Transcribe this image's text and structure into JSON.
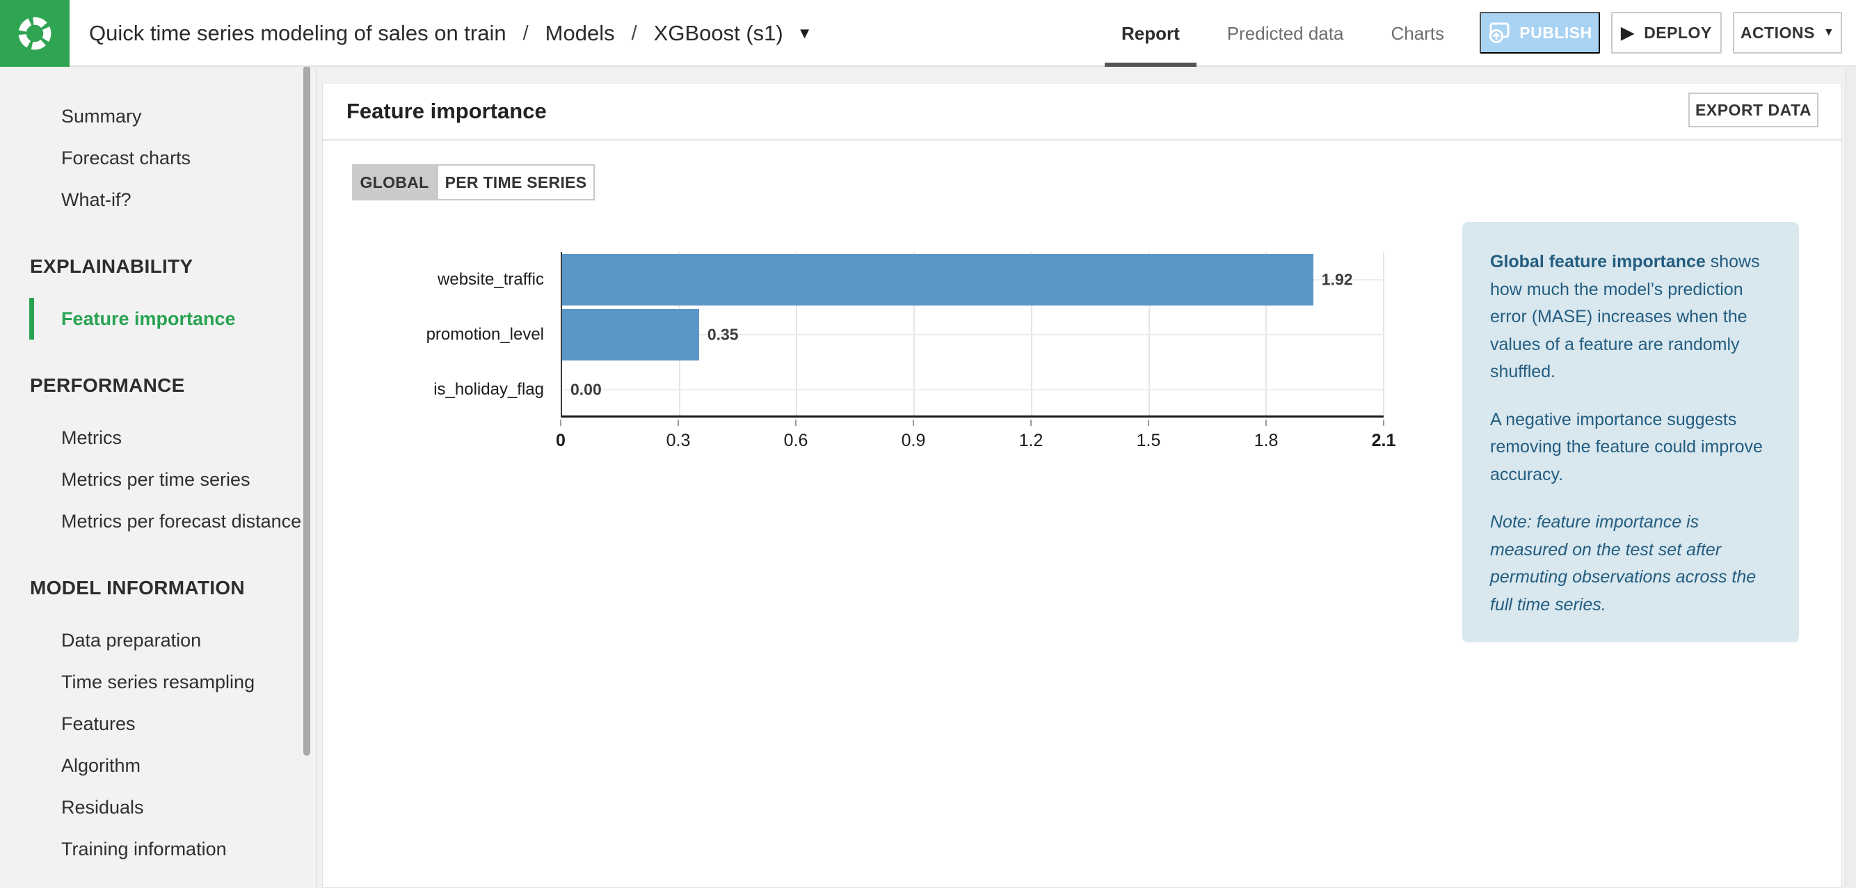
{
  "icons": {
    "caret_down": "▼",
    "play": "▶"
  },
  "header": {
    "breadcrumb": {
      "project": "Quick time series modeling of sales on train",
      "separator": "/",
      "section": "Models",
      "model": "XGBoost (s1)"
    },
    "tabs": [
      {
        "label": "Report",
        "active": true
      },
      {
        "label": "Predicted data",
        "active": false
      },
      {
        "label": "Charts",
        "active": false
      }
    ],
    "buttons": {
      "publish": "PUBLISH",
      "deploy": "DEPLOY",
      "actions": "ACTIONS"
    }
  },
  "sidebar": {
    "items_top": [
      {
        "label": "Summary"
      },
      {
        "label": "Forecast charts"
      },
      {
        "label": "What-if?"
      }
    ],
    "sections": [
      {
        "title": "EXPLAINABILITY",
        "items": [
          {
            "label": "Feature importance",
            "active": true
          }
        ]
      },
      {
        "title": "PERFORMANCE",
        "items": [
          {
            "label": "Metrics"
          },
          {
            "label": "Metrics per time series"
          },
          {
            "label": "Metrics per forecast distance"
          }
        ]
      },
      {
        "title": "MODEL INFORMATION",
        "items": [
          {
            "label": "Data preparation"
          },
          {
            "label": "Time series resampling"
          },
          {
            "label": "Features"
          },
          {
            "label": "Algorithm"
          },
          {
            "label": "Residuals"
          },
          {
            "label": "Training information"
          }
        ]
      }
    ]
  },
  "panel": {
    "title": "Feature importance",
    "export_button": "EXPORT DATA",
    "toggle": [
      {
        "label": "GLOBAL",
        "active": true
      },
      {
        "label": "PER TIME SERIES",
        "active": false
      }
    ]
  },
  "chart_data": {
    "type": "bar",
    "orientation": "horizontal",
    "title": "",
    "xlabel": "",
    "ylabel": "",
    "categories": [
      "website_traffic",
      "promotion_level",
      "is_holiday_flag"
    ],
    "values": [
      1.92,
      0.35,
      0.0
    ],
    "value_labels": [
      "1.92",
      "0.35",
      "0.00"
    ],
    "xlim": [
      0,
      2.1
    ],
    "xticks": [
      0,
      0.3,
      0.6,
      0.9,
      1.2,
      1.5,
      1.8,
      2.1
    ],
    "xtick_labels": [
      "0",
      "0.3",
      "0.6",
      "0.9",
      "1.2",
      "1.5",
      "1.8",
      "2.1"
    ],
    "bar_color": "#5b96c8",
    "grid": true,
    "legend": null
  },
  "info_box": {
    "p1_bold": "Global feature importance",
    "p1_rest": " shows how much the model’s prediction error (MASE) increases when the values of a feature are randomly shuffled.",
    "p2": "A negative importance suggests removing the feature could improve accuracy.",
    "p3_italic": "Note: feature importance is measured on the test set after permuting observations across the full time series."
  },
  "colors": {
    "brand_green": "#2fa452",
    "active_nav_green": "#29a352",
    "bar_blue": "#5b96c8",
    "publish_blue": "#a9d3f3",
    "info_bg": "#d9e7ee",
    "info_text": "#235d80"
  }
}
